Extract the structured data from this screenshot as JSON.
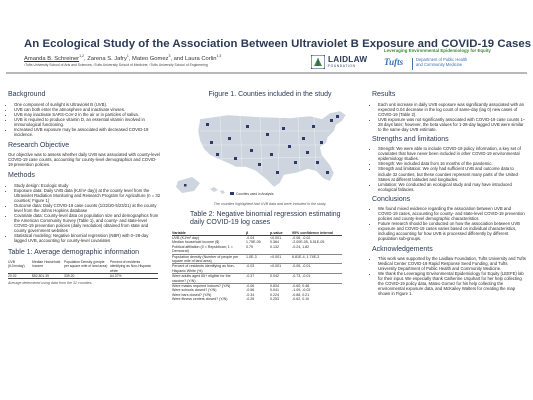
{
  "header": {
    "title": "An Ecological Study of the Association Between Ultraviolet B Exposure and COVID-19 Cases",
    "authors": [
      {
        "name": "Amanda B. Schreiner",
        "sup": "1,2",
        "underline": true
      },
      {
        "name": "Zarena S. Jafry",
        "sup": "1",
        "underline": false
      },
      {
        "name": "Mateo Gomez",
        "sup": "3",
        "underline": false
      },
      {
        "name": "Laura Corlin",
        "sup": "1,3",
        "underline": false
      }
    ],
    "affiliations": "¹Tufts University School of Arts and Sciences; ²Tufts University School of Medicine; ³Tufts University School of Engineering",
    "logos": {
      "laidlaw_name": "LAIDLAW",
      "laidlaw_sub": "FOUNDATION",
      "program": "Leveraging Environmental Epidemiology for Equity",
      "tufts": "Tufts",
      "tufts_dept_line1": "Department of Public Health",
      "tufts_dept_line2": "and Community Medicine"
    }
  },
  "left": {
    "background_heading": "Background",
    "background_items": [
      "One component of sunlight is Ultraviolet B (UVB).",
      "UVB can both enter the atmosphere and inactivate viruses.",
      "UVB may inactivate SARS-CoV-2 in the air or in particles of saliva.",
      "UVB is required to produce vitamin D, an essential vitamin involved in immunological functioning.",
      "Increased UVB exposure may be associated with decreased COVID-19 incidence."
    ],
    "objective_heading": "Research Objective",
    "objective_text": "Our objective was to assess whether daily UVB was associated with county-level COVID-19 case counts, accounting for county-level demographics and COVID-19 prevention policies.",
    "methods_heading": "Methods",
    "methods_items": [
      "Study design: Ecologic study",
      "Exposure data: Daily UVB data (KJ/m² day)) at the county level from the Ultraviolet Radiation Monitoring and Research Program for Agriculture (n = 32 counties; Figure 1)",
      "Outcome data: Daily COVID-19 case counts (1/22/20-5/23/21) at the county level from the Johns Hopkins database",
      "Covariate data: County-level data on population size and demographics from the American Community Survey (Table 1), and county- and state-level COVID-19 prevention policies (daily resolution) obtained from state and county government websites",
      "Statistical modeling: Negative binomial regression (NBR) with 0–28-day lagged UVB, accounting for county-level covariates"
    ],
    "table1_heading": "Table 1: Average demographic information",
    "table1_headers": [
      "UVB (KJ/m²day)",
      "Median Household Income",
      "Population Density (people per square mile of land area)",
      "Percent of residents identifying as Non-Hispanic white"
    ],
    "table1_row": [
      "20.02",
      "$52,801.39",
      "339.20",
      "64.37%"
    ],
    "table1_note": "Average determined using data from the 32 counties."
  },
  "middle": {
    "figure_heading": "Figure 1. Counties included in the study",
    "map_legend": "Counties used in Analysis",
    "figure_caption": "The counties highlighted had UVB data and were included in the study.",
    "table2_heading": "Table 2: Negative binomial regression estimating daily COVID-19 log cases",
    "table2_headers": [
      "Variable",
      "β",
      "p-value",
      "95% confidence interval"
    ],
    "table2_rows": [
      [
        "UVB (KJ/m² day)",
        "-0.04",
        "<0.001",
        "-0.06, -0.02"
      ],
      [
        "Median household income ($)",
        "1.75E-05",
        "0.364",
        "-2.00E-05, 5.51E-05"
      ],
      [
        "Political affiliation (0 = Republican; 1 = Democrat)",
        "0.79",
        "0.132",
        "-0.24, 1.82"
      ],
      [
        "Population density (Number of people per square mile of land area)",
        "1.0E-3",
        "<0.001",
        "6.81E-4, 1.74E-3"
      ],
      [
        "Percent of residents identifying as Non-Hispanic White (%)",
        "-0.03",
        "<0.001",
        "-0.05, -0.01"
      ],
      [
        "Were adults aged 65+ eligible for the vaccine? (Y/N)",
        "-0.37",
        "0.042",
        "-0.73, -0.01"
      ],
      [
        "Were masks required indoors? (Y/N)",
        "-0.06",
        "0.834",
        "-0.60, 0.48"
      ],
      [
        "Were schools closed? (Y/N)",
        "-0.56",
        "0.041",
        "-1.09, -0.02"
      ],
      [
        "Were bars closed? (Y/N)",
        "-0.34",
        "0.224",
        "-0.88, 0.21"
      ],
      [
        "Were fitness centers closed? (Y/N)",
        "-0.26",
        "0.253",
        "-0.62, 0.10"
      ]
    ]
  },
  "right": {
    "results_heading": "Results",
    "results_items": [
      "Each unit increase in daily UVB exposure was significantly associated with an expected 0.04 decrease in the log count of same-day (lag 0) new cases of COVID-19 (Table 2).",
      "UVB exposure was not significantly associated with COVID-19 case counts 1–28 days later; however, the beta values for 1-28-day lagged UVB were similar to the same-day UVB estimate."
    ],
    "strengths_heading": "Strengths and limitations",
    "strengths_items": [
      "Strength: We were able to include COVID-19 policy information, a key set of covariates that have never been included in other COVID-19 environmental epidemiology studies.",
      "Strength: We included data from 16 months of the pandemic.",
      "Strength and limitation: We only had sufficient UVB and outcome data to include 32 counties, but these counties represent many parts of the United States at different latitudes and longitudes.",
      "Limitation: We conducted an ecological study and may have introduced ecological fallacies."
    ],
    "conclusions_heading": "Conclusions",
    "conclusions_items": [
      "We found mixed evidence regarding the association between UVB and COVID-19 cases, accounting for county- and state-level COVID-19 prevention policies and county-level demographic characteristics.",
      "Future research should be conducted on how the association between UVB exposure and COVID-19 cases varies based on individual characteristics, including accounting for how UVB is processed differently by different population sub-groups."
    ],
    "ack_heading": "Acknowledgements",
    "ack_items": [
      "This work was supported by the Laidlaw Foundation, Tufts University and Tufts Medical Center COVID-19 Rapid Response Seed Funding, and Tufts University Department of Public Health and Community Medicine.",
      "We thank the Leveraging Environmental Epidemiology for Equity (LEEFE) lab for their input. We especially thank Catherine Urquhart for her help collecting the COVID-19 policy data, Mateo Gomez for his help collecting the environmental exposure data, and McKailey Walters for creating the map shown in Figure 1."
    ]
  },
  "colors": {
    "heading": "#2b3a55",
    "map_land": "#cfd5de",
    "map_highlight": "#2b3a6b",
    "map_water": "#ffffff",
    "laidlaw_green": "#3d8a3a",
    "tufts_blue": "#3b6fb6"
  }
}
